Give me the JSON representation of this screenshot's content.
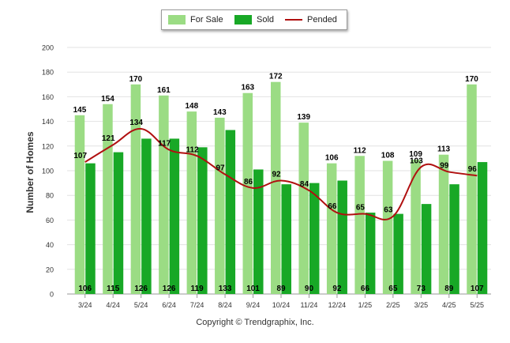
{
  "legend": {
    "for_sale": "For Sale",
    "sold": "Sold",
    "pended": "Pended"
  },
  "footer": {
    "copyright": "Copyright © Trendgraphix, Inc."
  },
  "colors": {
    "for_sale": "#9bdc84",
    "sold": "#18a826",
    "pended": "#b01010"
  },
  "chart_data": {
    "type": "bar",
    "categories": [
      "3/24",
      "4/24",
      "5/24",
      "6/24",
      "7/24",
      "8/24",
      "9/24",
      "10/24",
      "11/24",
      "12/24",
      "1/25",
      "2/25",
      "3/25",
      "4/25",
      "5/25"
    ],
    "series": [
      {
        "name": "For Sale",
        "type": "bar",
        "values": [
          145,
          154,
          170,
          161,
          148,
          143,
          163,
          172,
          139,
          106,
          112,
          108,
          109,
          113,
          170
        ]
      },
      {
        "name": "Sold",
        "type": "bar",
        "values": [
          106,
          115,
          126,
          126,
          119,
          133,
          101,
          89,
          90,
          92,
          66,
          65,
          73,
          89,
          107
        ]
      },
      {
        "name": "Pended",
        "type": "line",
        "values": [
          107,
          121,
          134,
          117,
          112,
          97,
          86,
          92,
          84,
          66,
          65,
          63,
          103,
          99,
          96
        ]
      }
    ],
    "ylabel": "Number of Homes",
    "xlabel": "",
    "ylim": [
      0,
      200
    ],
    "yticks": [
      0,
      20,
      40,
      60,
      80,
      100,
      120,
      140,
      160,
      180,
      200
    ],
    "grid": true,
    "legend_position": "top-center"
  }
}
